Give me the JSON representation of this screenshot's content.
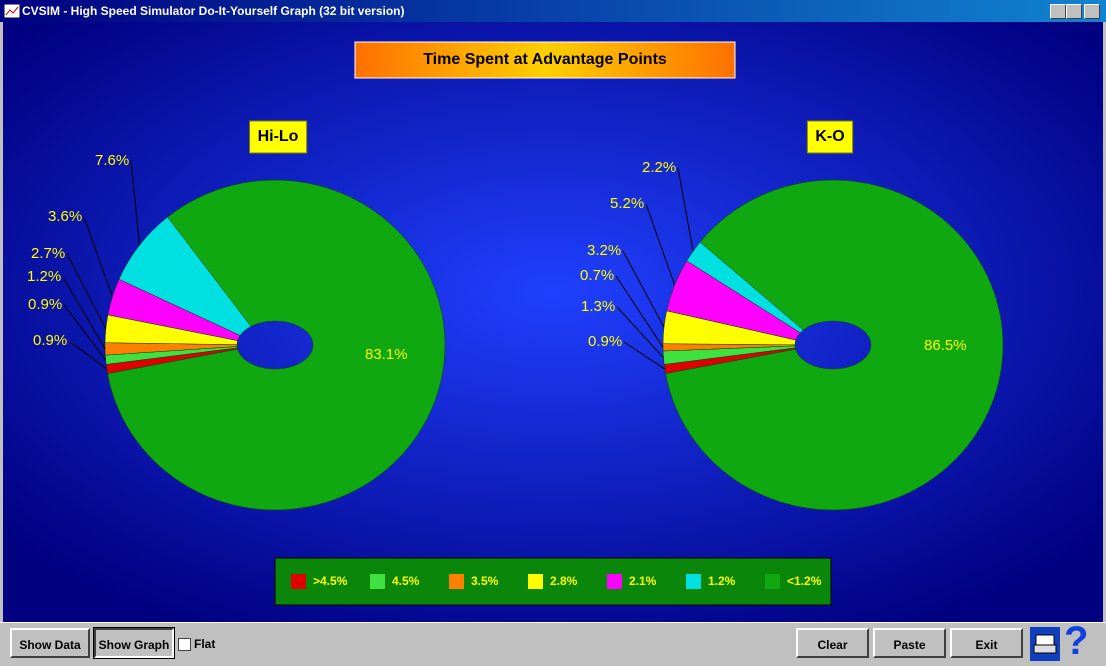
{
  "window": {
    "title": "CVSIM - High Speed Simulator Do-It-Yourself Graph (32 bit version)"
  },
  "header": {
    "title": "Time Spent at Advantage Points"
  },
  "legend": {
    "categories": [
      ">4.5%",
      "4.5%",
      "3.5%",
      "2.8%",
      "2.1%",
      "1.2%",
      "<1.2%"
    ],
    "colors": [
      "#e00000",
      "#40e040",
      "#ff8000",
      "#ffff00",
      "#ff00ff",
      "#00e0e0",
      "#10a810"
    ]
  },
  "chart_data": [
    {
      "type": "pie",
      "title": "Hi-Lo",
      "values": [
        0.9,
        0.9,
        1.2,
        2.7,
        3.6,
        7.6,
        83.1
      ],
      "value_labels": [
        "0.9%",
        "0.9%",
        "1.2%",
        "2.7%",
        "3.6%",
        "7.6%",
        "83.1%"
      ]
    },
    {
      "type": "pie",
      "title": "K-O",
      "values": [
        0.9,
        1.3,
        0.7,
        3.2,
        5.2,
        2.2,
        86.5
      ],
      "value_labels": [
        "0.9%",
        "1.3%",
        "0.7%",
        "3.2%",
        "5.2%",
        "2.2%",
        "86.5%"
      ]
    }
  ],
  "toolbar": {
    "show_data": "Show Data",
    "show_graph": "Show Graph",
    "flat": "Flat",
    "clear": "Clear",
    "paste": "Paste",
    "exit": "Exit",
    "help": "?"
  }
}
